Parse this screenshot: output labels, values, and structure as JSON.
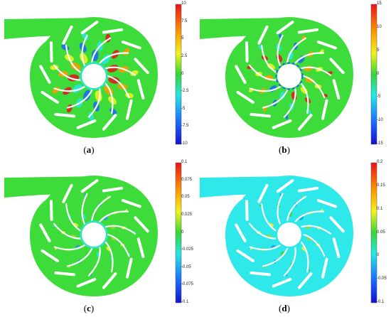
{
  "panels": [
    {
      "caption_open": "(",
      "caption_letter": "a",
      "caption_close": ")",
      "background": "#3ddc3a",
      "colorbar_ticks": [
        "10",
        "7.5",
        "5",
        "2.5",
        "0",
        "-2.5",
        "-5",
        "-7.5",
        "-10"
      ],
      "hot_spots": "strong",
      "hub_ring": "solid"
    },
    {
      "caption_open": "(",
      "caption_letter": "b",
      "caption_close": ")",
      "background": "#3ddc3a",
      "colorbar_ticks": [
        "15",
        "10",
        "5",
        "0",
        "-5",
        "-10",
        "-15"
      ],
      "hot_spots": "medium",
      "hub_ring": "dashed"
    },
    {
      "caption_open": "(",
      "caption_letter": "c",
      "caption_close": ")",
      "background": "#3ddc3a",
      "colorbar_ticks": [
        "0.1",
        "0.075",
        "0.05",
        "0.025",
        "0",
        "-0.025",
        "-0.05",
        "-0.075",
        "-0.1"
      ],
      "hot_spots": "light",
      "hub_ring": "solid"
    },
    {
      "caption_open": "(",
      "caption_letter": "d",
      "caption_close": ")",
      "background": "#2ee8ea",
      "colorbar_ticks": [
        "0.2",
        "0.15",
        "0.1",
        "0.05",
        "0",
        "-0.05",
        "-0.1"
      ],
      "hot_spots": "light",
      "hub_ring": "solid"
    }
  ]
}
